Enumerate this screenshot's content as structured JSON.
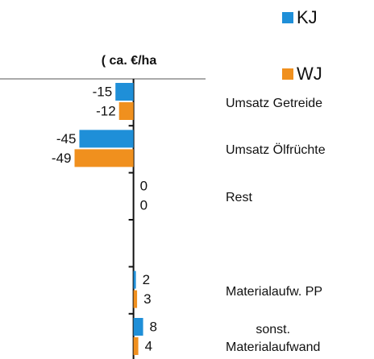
{
  "chart_data": {
    "type": "hbar",
    "title": "( ca. €/ha",
    "categories": [
      "Umsatz Getreide",
      "Umsatz Ölfrüchte",
      "Rest",
      null,
      "Materialaufw. PP",
      "sonst.\nMaterialaufwand"
    ],
    "series": [
      {
        "name": "KJ",
        "color": "#1f8fd8",
        "values": [
          -15,
          -45,
          0,
          null,
          2,
          8
        ]
      },
      {
        "name": "WJ",
        "color": "#f0901e",
        "values": [
          -12,
          -49,
          0,
          null,
          3,
          4
        ]
      }
    ],
    "xlim": [
      -111,
      200
    ]
  }
}
